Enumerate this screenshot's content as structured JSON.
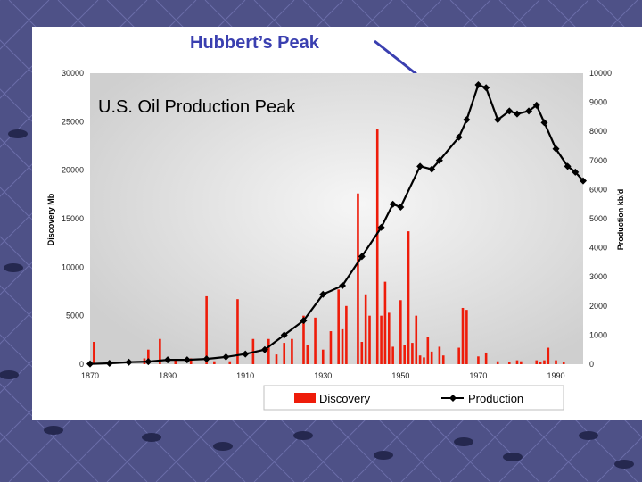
{
  "slide_title": "Hubbert’s Peak",
  "chart_data": {
    "type": "bar+line",
    "title": "U.S. Oil Production Peak",
    "xlabel": "",
    "ylabel_left": "Discovery Mb",
    "ylabel_right": "Production kb/d",
    "x_ticks": [
      1870,
      1890,
      1910,
      1930,
      1950,
      1970,
      1990
    ],
    "y_left_ticks": [
      "0",
      "5000",
      "10000",
      "15000",
      "20000",
      "25000",
      "30000"
    ],
    "y_right_ticks": [
      "0",
      "1000",
      "2000",
      "3000",
      "4000",
      "5000",
      "6000",
      "7000",
      "8000",
      "9000",
      "10000"
    ],
    "ylim_left": [
      0,
      30000
    ],
    "ylim_right": [
      0,
      10000
    ],
    "xlim": [
      1870,
      1997
    ],
    "grid": false,
    "legend": "bottom",
    "series": [
      {
        "name": "Discovery",
        "kind": "bar",
        "color": "#ee1c0a",
        "axis": "left",
        "points": [
          [
            1871,
            2300
          ],
          [
            1884,
            600
          ],
          [
            1885,
            1500
          ],
          [
            1888,
            2600
          ],
          [
            1892,
            400
          ],
          [
            1896,
            600
          ],
          [
            1900,
            7000
          ],
          [
            1902,
            300
          ],
          [
            1906,
            300
          ],
          [
            1908,
            6700
          ],
          [
            1912,
            2600
          ],
          [
            1916,
            2600
          ],
          [
            1918,
            1000
          ],
          [
            1920,
            2200
          ],
          [
            1922,
            2600
          ],
          [
            1925,
            5000
          ],
          [
            1926,
            2000
          ],
          [
            1928,
            4800
          ],
          [
            1930,
            1500
          ],
          [
            1932,
            3400
          ],
          [
            1934,
            7700
          ],
          [
            1935,
            3600
          ],
          [
            1936,
            6000
          ],
          [
            1939,
            17600
          ],
          [
            1940,
            2300
          ],
          [
            1941,
            7200
          ],
          [
            1942,
            5000
          ],
          [
            1944,
            24200
          ],
          [
            1945,
            5000
          ],
          [
            1946,
            8500
          ],
          [
            1947,
            5300
          ],
          [
            1948,
            1800
          ],
          [
            1950,
            6600
          ],
          [
            1951,
            2000
          ],
          [
            1952,
            13700
          ],
          [
            1953,
            2200
          ],
          [
            1954,
            5000
          ],
          [
            1955,
            900
          ],
          [
            1956,
            700
          ],
          [
            1957,
            2800
          ],
          [
            1958,
            1300
          ],
          [
            1960,
            1800
          ],
          [
            1961,
            900
          ],
          [
            1965,
            1700
          ],
          [
            1966,
            5800
          ],
          [
            1967,
            5600
          ],
          [
            1970,
            800
          ],
          [
            1972,
            1200
          ],
          [
            1975,
            300
          ],
          [
            1978,
            200
          ],
          [
            1980,
            400
          ],
          [
            1981,
            300
          ],
          [
            1985,
            400
          ],
          [
            1986,
            200
          ],
          [
            1987,
            400
          ],
          [
            1988,
            1700
          ],
          [
            1990,
            400
          ],
          [
            1992,
            200
          ]
        ]
      },
      {
        "name": "Production",
        "kind": "line",
        "color": "#000000",
        "axis": "right",
        "points": [
          [
            1870,
            10
          ],
          [
            1875,
            30
          ],
          [
            1880,
            70
          ],
          [
            1885,
            90
          ],
          [
            1890,
            150
          ],
          [
            1895,
            150
          ],
          [
            1900,
            180
          ],
          [
            1905,
            250
          ],
          [
            1910,
            350
          ],
          [
            1915,
            500
          ],
          [
            1920,
            1000
          ],
          [
            1925,
            1500
          ],
          [
            1930,
            2400
          ],
          [
            1935,
            2700
          ],
          [
            1940,
            3700
          ],
          [
            1945,
            4700
          ],
          [
            1948,
            5500
          ],
          [
            1950,
            5400
          ],
          [
            1955,
            6800
          ],
          [
            1958,
            6700
          ],
          [
            1960,
            7000
          ],
          [
            1965,
            7800
          ],
          [
            1967,
            8400
          ],
          [
            1970,
            9600
          ],
          [
            1972,
            9500
          ],
          [
            1975,
            8400
          ],
          [
            1978,
            8700
          ],
          [
            1980,
            8600
          ],
          [
            1983,
            8700
          ],
          [
            1985,
            8900
          ],
          [
            1987,
            8300
          ],
          [
            1990,
            7400
          ],
          [
            1993,
            6800
          ],
          [
            1995,
            6600
          ],
          [
            1997,
            6300
          ]
        ]
      }
    ]
  }
}
